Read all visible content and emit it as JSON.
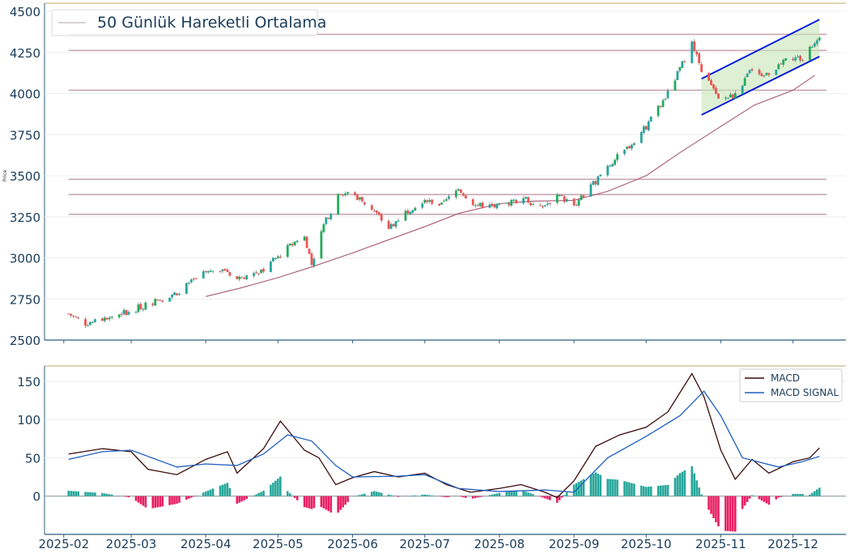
{
  "chart_data": [
    {
      "type": "candlestick",
      "ylabel": "Price",
      "ylim": [
        2500,
        4500
      ],
      "yticks": [
        2500,
        2750,
        3000,
        3250,
        3500,
        3750,
        4000,
        4250,
        4500
      ],
      "legend": {
        "label": "50 Günlük Hareketli Ortalama",
        "position": "top-left"
      },
      "colors": {
        "up": "#26a69a",
        "up_alt": "#22ab5c",
        "down": "#ef5350",
        "ma": "#a85a76",
        "levels": "#c9a5b3",
        "channel": "#0a1fd6",
        "channel_fill": "#c8e6b8"
      },
      "horizontal_levels": [
        4360,
        4262,
        4020,
        3478,
        3385,
        3265
      ],
      "channel": {
        "x_start": "2025-10-24",
        "x_end": "2025-12-12",
        "upper": [
          4090,
          4450
        ],
        "lower": [
          3870,
          4225
        ]
      },
      "ma_points": [
        [
          "2025-04-01",
          2765
        ],
        [
          "2025-04-15",
          2815
        ],
        [
          "2025-05-01",
          2880
        ],
        [
          "2025-05-15",
          2945
        ],
        [
          "2025-06-01",
          3030
        ],
        [
          "2025-06-15",
          3105
        ],
        [
          "2025-07-01",
          3190
        ],
        [
          "2025-07-15",
          3270
        ],
        [
          "2025-08-01",
          3330
        ],
        [
          "2025-08-15",
          3345
        ],
        [
          "2025-09-01",
          3350
        ],
        [
          "2025-09-15",
          3405
        ],
        [
          "2025-10-01",
          3500
        ],
        [
          "2025-10-15",
          3640
        ],
        [
          "2025-11-01",
          3800
        ],
        [
          "2025-11-15",
          3930
        ],
        [
          "2025-12-01",
          4020
        ],
        [
          "2025-12-10",
          4110
        ]
      ],
      "price_anchors": [
        [
          "2025-02-03",
          2660
        ],
        [
          "2025-02-10",
          2600
        ],
        [
          "2025-02-20",
          2640
        ],
        [
          "2025-03-01",
          2680
        ],
        [
          "2025-03-10",
          2730
        ],
        [
          "2025-03-20",
          2790
        ],
        [
          "2025-03-31",
          2900
        ],
        [
          "2025-04-08",
          2940
        ],
        [
          "2025-04-14",
          2870
        ],
        [
          "2025-04-25",
          2930
        ],
        [
          "2025-05-05",
          3060
        ],
        [
          "2025-05-12",
          3140
        ],
        [
          "2025-05-15",
          2960
        ],
        [
          "2025-05-20",
          3200
        ],
        [
          "2025-05-27",
          3400
        ],
        [
          "2025-06-02",
          3380
        ],
        [
          "2025-06-09",
          3300
        ],
        [
          "2025-06-16",
          3180
        ],
        [
          "2025-06-23",
          3280
        ],
        [
          "2025-07-01",
          3360
        ],
        [
          "2025-07-08",
          3320
        ],
        [
          "2025-07-15",
          3420
        ],
        [
          "2025-07-22",
          3320
        ],
        [
          "2025-08-01",
          3310
        ],
        [
          "2025-08-11",
          3370
        ],
        [
          "2025-08-18",
          3300
        ],
        [
          "2025-08-25",
          3380
        ],
        [
          "2025-09-01",
          3320
        ],
        [
          "2025-09-08",
          3430
        ],
        [
          "2025-09-15",
          3560
        ],
        [
          "2025-09-22",
          3650
        ],
        [
          "2025-10-01",
          3800
        ],
        [
          "2025-10-10",
          4000
        ],
        [
          "2025-10-20",
          4300
        ],
        [
          "2025-10-24",
          4150
        ],
        [
          "2025-10-31",
          3960
        ],
        [
          "2025-11-07",
          3990
        ],
        [
          "2025-11-14",
          4150
        ],
        [
          "2025-11-21",
          4100
        ],
        [
          "2025-11-28",
          4230
        ],
        [
          "2025-12-05",
          4210
        ],
        [
          "2025-12-12",
          4360
        ]
      ]
    },
    {
      "type": "line+bar",
      "ylim": [
        -50,
        170
      ],
      "yticks": [
        0,
        50,
        100,
        150
      ],
      "legend_position": "top-right",
      "series": [
        {
          "name": "MACD",
          "color": "#3b0a0a",
          "points": [
            [
              "2025-02-03",
              55
            ],
            [
              "2025-02-17",
              62
            ],
            [
              "2025-03-01",
              58
            ],
            [
              "2025-03-08",
              35
            ],
            [
              "2025-03-20",
              28
            ],
            [
              "2025-04-01",
              48
            ],
            [
              "2025-04-10",
              58
            ],
            [
              "2025-04-14",
              30
            ],
            [
              "2025-04-25",
              62
            ],
            [
              "2025-05-02",
              98
            ],
            [
              "2025-05-12",
              60
            ],
            [
              "2025-05-18",
              50
            ],
            [
              "2025-05-25",
              15
            ],
            [
              "2025-06-01",
              24
            ],
            [
              "2025-06-10",
              32
            ],
            [
              "2025-06-20",
              25
            ],
            [
              "2025-07-01",
              30
            ],
            [
              "2025-07-10",
              15
            ],
            [
              "2025-07-20",
              5
            ],
            [
              "2025-08-01",
              10
            ],
            [
              "2025-08-10",
              15
            ],
            [
              "2025-08-20",
              5
            ],
            [
              "2025-08-25",
              -2
            ],
            [
              "2025-09-01",
              20
            ],
            [
              "2025-09-10",
              65
            ],
            [
              "2025-09-20",
              80
            ],
            [
              "2025-10-01",
              90
            ],
            [
              "2025-10-10",
              110
            ],
            [
              "2025-10-20",
              160
            ],
            [
              "2025-10-25",
              130
            ],
            [
              "2025-11-01",
              60
            ],
            [
              "2025-11-07",
              22
            ],
            [
              "2025-11-14",
              48
            ],
            [
              "2025-11-21",
              30
            ],
            [
              "2025-12-01",
              45
            ],
            [
              "2025-12-08",
              50
            ],
            [
              "2025-12-12",
              63
            ]
          ]
        },
        {
          "name": "MACD SIGNAL",
          "color": "#1f5fbf",
          "points": [
            [
              "2025-02-03",
              48
            ],
            [
              "2025-02-17",
              58
            ],
            [
              "2025-03-01",
              60
            ],
            [
              "2025-03-20",
              38
            ],
            [
              "2025-04-01",
              42
            ],
            [
              "2025-04-14",
              40
            ],
            [
              "2025-04-25",
              55
            ],
            [
              "2025-05-05",
              80
            ],
            [
              "2025-05-15",
              72
            ],
            [
              "2025-05-25",
              40
            ],
            [
              "2025-06-01",
              25
            ],
            [
              "2025-06-20",
              26
            ],
            [
              "2025-07-01",
              28
            ],
            [
              "2025-07-15",
              10
            ],
            [
              "2025-08-01",
              6
            ],
            [
              "2025-08-20",
              8
            ],
            [
              "2025-09-01",
              5
            ],
            [
              "2025-09-15",
              50
            ],
            [
              "2025-10-01",
              78
            ],
            [
              "2025-10-15",
              105
            ],
            [
              "2025-10-25",
              137
            ],
            [
              "2025-11-01",
              105
            ],
            [
              "2025-11-10",
              50
            ],
            [
              "2025-11-25",
              38
            ],
            [
              "2025-12-05",
              45
            ],
            [
              "2025-12-12",
              52
            ]
          ]
        }
      ],
      "histogram_colors": {
        "pos": "#26a69a",
        "neg": "#e91e63"
      }
    }
  ],
  "x_axis": {
    "ticks": [
      "2025-02",
      "2025-03",
      "2025-04",
      "2025-05",
      "2025-06",
      "2025-07",
      "2025-08",
      "2025-09",
      "2025-10",
      "2025-11",
      "2025-12"
    ],
    "range": [
      "2025-01-24",
      "2025-12-23"
    ]
  }
}
